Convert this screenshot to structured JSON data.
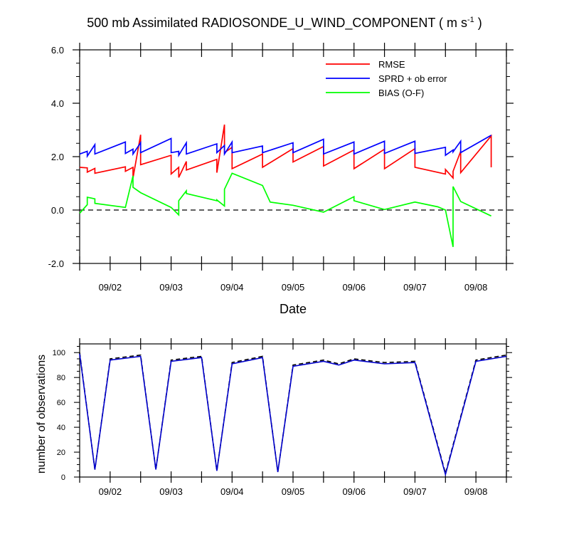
{
  "title": {
    "main": "500 mb Assimilated RADIOSONDE_U_WIND_COMPONENT ( m s",
    "unit_exponent": "-1",
    "close": " )"
  },
  "colors": {
    "rmse": "#ff0000",
    "sprd": "#0000ff",
    "bias": "#00ff00",
    "zero_line": "#000000",
    "obs_used": "#0000cc",
    "obs_possible": "#000000"
  },
  "chart_data": [
    {
      "type": "line",
      "title": "500 mb Assimilated RADIOSONDE_U_WIND_COMPONENT ( m s-1 )",
      "xlabel": "Date",
      "ylabel": "",
      "x_range": [
        "09/01 12Z",
        "09/08 12Z"
      ],
      "x_tick_labels": [
        "09/02",
        "09/03",
        "09/04",
        "09/05",
        "09/06",
        "09/07",
        "09/08"
      ],
      "y_tick_labels": [
        "6.0",
        "4.0",
        "2.0",
        "0.0",
        "-2.0"
      ],
      "ylim": [
        -2,
        6
      ],
      "grid": false,
      "legend_position": "top-right",
      "reference_line": {
        "y": 0,
        "style": "dashed"
      },
      "series": [
        {
          "name": "RMSE",
          "x": [
            0,
            0.25,
            0.25,
            0.5,
            0.5,
            1.5,
            1.5,
            1.75,
            1.75,
            2.0,
            2.0,
            3.0,
            3.0,
            3.25,
            3.25,
            3.5,
            3.5,
            4.5,
            4.5,
            4.75,
            4.75,
            5.0,
            5.0,
            6.0,
            6.0,
            7.0,
            7.0,
            8.0,
            8.0,
            9.0,
            9.0,
            10.0,
            10.0,
            11.0,
            11.0,
            12.0,
            12.0,
            12.25,
            12.25,
            12.5,
            12.5,
            13.5,
            13.5
          ],
          "y": [
            1.6,
            1.58,
            1.42,
            1.56,
            1.38,
            1.62,
            1.45,
            1.6,
            1.2,
            2.82,
            1.7,
            2.05,
            1.35,
            1.6,
            1.22,
            1.82,
            1.5,
            1.9,
            1.4,
            3.2,
            2.15,
            2.35,
            1.55,
            2.1,
            1.6,
            2.3,
            1.8,
            2.38,
            1.65,
            2.25,
            1.55,
            2.28,
            1.55,
            2.3,
            1.6,
            1.35,
            1.52,
            1.2,
            1.45,
            2.2,
            1.4,
            2.78,
            1.6
          ]
        },
        {
          "name": "SPRD + ob error",
          "x": [
            0,
            0.25,
            0.25,
            0.5,
            0.5,
            1.5,
            1.5,
            1.75,
            1.75,
            2.0,
            2.0,
            3.0,
            3.0,
            3.25,
            3.25,
            3.5,
            3.5,
            4.5,
            4.5,
            4.75,
            4.75,
            5.0,
            5.0,
            6.0,
            6.0,
            7.0,
            7.0,
            8.0,
            8.0,
            9.0,
            9.0,
            10.0,
            10.0,
            11.0,
            11.0,
            12.0,
            12.0,
            12.25,
            12.25,
            12.5,
            12.5,
            13.5
          ],
          "y": [
            2.1,
            2.2,
            2.02,
            2.45,
            2.1,
            2.55,
            2.12,
            2.28,
            2.1,
            2.52,
            2.15,
            2.68,
            2.15,
            2.2,
            2.05,
            2.52,
            2.1,
            2.48,
            2.15,
            2.42,
            2.1,
            2.55,
            2.15,
            2.4,
            2.15,
            2.52,
            2.15,
            2.65,
            2.1,
            2.55,
            2.1,
            2.58,
            2.12,
            2.58,
            2.12,
            2.35,
            2.05,
            2.25,
            2.18,
            2.58,
            2.15,
            2.8
          ]
        },
        {
          "name": "BIAS (O-F)",
          "x": [
            0,
            0.25,
            0.25,
            0.5,
            0.5,
            1.5,
            1.75,
            1.75,
            2.0,
            3.0,
            3.25,
            3.25,
            3.5,
            3.5,
            4.5,
            4.5,
            4.75,
            4.75,
            5.0,
            6.0,
            6.25,
            7.0,
            8.0,
            9.0,
            9.0,
            10.0,
            11.0,
            11.75,
            12.0,
            12.25,
            12.25,
            12.5,
            13.5
          ],
          "y": [
            -0.12,
            0.2,
            0.48,
            0.42,
            0.25,
            0.1,
            1.28,
            0.85,
            0.65,
            0.1,
            -0.18,
            0.35,
            0.72,
            0.62,
            0.35,
            0.38,
            0.15,
            0.78,
            1.38,
            0.92,
            0.3,
            0.18,
            -0.08,
            0.5,
            0.35,
            0.02,
            0.3,
            0.12,
            0.0,
            -1.38,
            0.88,
            0.32,
            -0.22
          ]
        }
      ]
    },
    {
      "type": "line",
      "title": "",
      "xlabel": "",
      "ylabel": "number of observations",
      "x_range": [
        "09/01 12Z",
        "09/08 12Z"
      ],
      "x_tick_labels": [
        "09/02",
        "09/03",
        "09/04",
        "09/05",
        "09/06",
        "09/07",
        "09/08"
      ],
      "y_tick_labels": [
        "0",
        "20",
        "40",
        "60",
        "80",
        "100"
      ],
      "ylim": [
        0,
        107
      ],
      "grid": false,
      "series": [
        {
          "style": "dashed",
          "x": [
            0,
            1,
            2,
            4,
            5,
            6,
            8,
            9,
            10,
            12,
            13,
            14,
            16,
            17,
            18,
            20,
            22,
            24,
            26,
            27,
            28
          ],
          "y": [
            100,
            6,
            95,
            98,
            6,
            94,
            97,
            5,
            92,
            97,
            4,
            90,
            94,
            91,
            95,
            92,
            93,
            3,
            94,
            96,
            98
          ]
        },
        {
          "style": "solid",
          "x": [
            0,
            1,
            2,
            4,
            5,
            6,
            8,
            9,
            10,
            12,
            13,
            14,
            16,
            17,
            18,
            20,
            22,
            24,
            26,
            27,
            28
          ],
          "y": [
            99,
            6,
            94,
            97,
            6,
            93,
            96,
            5,
            91,
            96,
            4,
            89,
            93,
            90,
            94,
            91,
            92,
            2,
            93,
            95,
            97
          ]
        }
      ]
    }
  ]
}
